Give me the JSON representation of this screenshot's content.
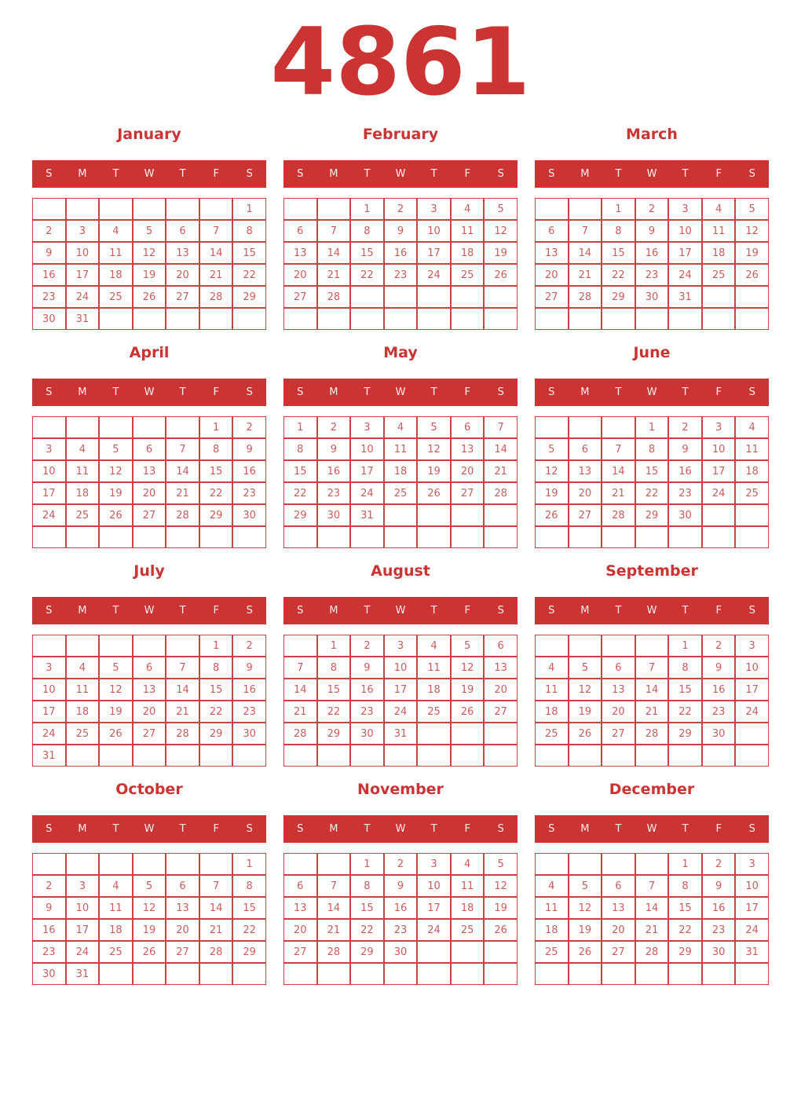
{
  "title": "4861",
  "weekday_headers": [
    "S",
    "M",
    "T",
    "W",
    "T",
    "F",
    "S"
  ],
  "colors": {
    "accent": "#cc3333",
    "day_number": "#cd5c5c",
    "grid_border": "#cb4343",
    "weekday_text": "#f8f0f0",
    "page_background": "#ffffff"
  },
  "months": [
    {
      "name": "January",
      "weeks": [
        [
          "",
          "",
          "",
          "",
          "",
          "",
          "1"
        ],
        [
          "2",
          "3",
          "4",
          "5",
          "6",
          "7",
          "8"
        ],
        [
          "9",
          "10",
          "11",
          "12",
          "13",
          "14",
          "15"
        ],
        [
          "16",
          "17",
          "18",
          "19",
          "20",
          "21",
          "22"
        ],
        [
          "23",
          "24",
          "25",
          "26",
          "27",
          "28",
          "29"
        ],
        [
          "30",
          "31",
          "",
          "",
          "",
          "",
          ""
        ]
      ]
    },
    {
      "name": "February",
      "weeks": [
        [
          "",
          "",
          "1",
          "2",
          "3",
          "4",
          "5"
        ],
        [
          "6",
          "7",
          "8",
          "9",
          "10",
          "11",
          "12"
        ],
        [
          "13",
          "14",
          "15",
          "16",
          "17",
          "18",
          "19"
        ],
        [
          "20",
          "21",
          "22",
          "23",
          "24",
          "25",
          "26"
        ],
        [
          "27",
          "28",
          "",
          "",
          "",
          "",
          ""
        ],
        [
          "",
          "",
          "",
          "",
          "",
          "",
          ""
        ]
      ]
    },
    {
      "name": "March",
      "weeks": [
        [
          "",
          "",
          "1",
          "2",
          "3",
          "4",
          "5"
        ],
        [
          "6",
          "7",
          "8",
          "9",
          "10",
          "11",
          "12"
        ],
        [
          "13",
          "14",
          "15",
          "16",
          "17",
          "18",
          "19"
        ],
        [
          "20",
          "21",
          "22",
          "23",
          "24",
          "25",
          "26"
        ],
        [
          "27",
          "28",
          "29",
          "30",
          "31",
          "",
          ""
        ],
        [
          "",
          "",
          "",
          "",
          "",
          "",
          ""
        ]
      ]
    },
    {
      "name": "April",
      "weeks": [
        [
          "",
          "",
          "",
          "",
          "",
          "1",
          "2"
        ],
        [
          "3",
          "4",
          "5",
          "6",
          "7",
          "8",
          "9"
        ],
        [
          "10",
          "11",
          "12",
          "13",
          "14",
          "15",
          "16"
        ],
        [
          "17",
          "18",
          "19",
          "20",
          "21",
          "22",
          "23"
        ],
        [
          "24",
          "25",
          "26",
          "27",
          "28",
          "29",
          "30"
        ],
        [
          "",
          "",
          "",
          "",
          "",
          "",
          ""
        ]
      ]
    },
    {
      "name": "May",
      "weeks": [
        [
          "1",
          "2",
          "3",
          "4",
          "5",
          "6",
          "7"
        ],
        [
          "8",
          "9",
          "10",
          "11",
          "12",
          "13",
          "14"
        ],
        [
          "15",
          "16",
          "17",
          "18",
          "19",
          "20",
          "21"
        ],
        [
          "22",
          "23",
          "24",
          "25",
          "26",
          "27",
          "28"
        ],
        [
          "29",
          "30",
          "31",
          "",
          "",
          "",
          ""
        ],
        [
          "",
          "",
          "",
          "",
          "",
          "",
          ""
        ]
      ]
    },
    {
      "name": "June",
      "weeks": [
        [
          "",
          "",
          "",
          "1",
          "2",
          "3",
          "4"
        ],
        [
          "5",
          "6",
          "7",
          "8",
          "9",
          "10",
          "11"
        ],
        [
          "12",
          "13",
          "14",
          "15",
          "16",
          "17",
          "18"
        ],
        [
          "19",
          "20",
          "21",
          "22",
          "23",
          "24",
          "25"
        ],
        [
          "26",
          "27",
          "28",
          "29",
          "30",
          "",
          ""
        ],
        [
          "",
          "",
          "",
          "",
          "",
          "",
          ""
        ]
      ]
    },
    {
      "name": "July",
      "weeks": [
        [
          "",
          "",
          "",
          "",
          "",
          "1",
          "2"
        ],
        [
          "3",
          "4",
          "5",
          "6",
          "7",
          "8",
          "9"
        ],
        [
          "10",
          "11",
          "12",
          "13",
          "14",
          "15",
          "16"
        ],
        [
          "17",
          "18",
          "19",
          "20",
          "21",
          "22",
          "23"
        ],
        [
          "24",
          "25",
          "26",
          "27",
          "28",
          "29",
          "30"
        ],
        [
          "31",
          "",
          "",
          "",
          "",
          "",
          ""
        ]
      ]
    },
    {
      "name": "August",
      "weeks": [
        [
          "",
          "1",
          "2",
          "3",
          "4",
          "5",
          "6"
        ],
        [
          "7",
          "8",
          "9",
          "10",
          "11",
          "12",
          "13"
        ],
        [
          "14",
          "15",
          "16",
          "17",
          "18",
          "19",
          "20"
        ],
        [
          "21",
          "22",
          "23",
          "24",
          "25",
          "26",
          "27"
        ],
        [
          "28",
          "29",
          "30",
          "31",
          "",
          "",
          ""
        ],
        [
          "",
          "",
          "",
          "",
          "",
          "",
          ""
        ]
      ]
    },
    {
      "name": "September",
      "weeks": [
        [
          "",
          "",
          "",
          "",
          "1",
          "2",
          "3"
        ],
        [
          "4",
          "5",
          "6",
          "7",
          "8",
          "9",
          "10"
        ],
        [
          "11",
          "12",
          "13",
          "14",
          "15",
          "16",
          "17"
        ],
        [
          "18",
          "19",
          "20",
          "21",
          "22",
          "23",
          "24"
        ],
        [
          "25",
          "26",
          "27",
          "28",
          "29",
          "30",
          ""
        ],
        [
          "",
          "",
          "",
          "",
          "",
          "",
          ""
        ]
      ]
    },
    {
      "name": "October",
      "weeks": [
        [
          "",
          "",
          "",
          "",
          "",
          "",
          "1"
        ],
        [
          "2",
          "3",
          "4",
          "5",
          "6",
          "7",
          "8"
        ],
        [
          "9",
          "10",
          "11",
          "12",
          "13",
          "14",
          "15"
        ],
        [
          "16",
          "17",
          "18",
          "19",
          "20",
          "21",
          "22"
        ],
        [
          "23",
          "24",
          "25",
          "26",
          "27",
          "28",
          "29"
        ],
        [
          "30",
          "31",
          "",
          "",
          "",
          "",
          ""
        ]
      ]
    },
    {
      "name": "November",
      "weeks": [
        [
          "",
          "",
          "1",
          "2",
          "3",
          "4",
          "5"
        ],
        [
          "6",
          "7",
          "8",
          "9",
          "10",
          "11",
          "12"
        ],
        [
          "13",
          "14",
          "15",
          "16",
          "17",
          "18",
          "19"
        ],
        [
          "20",
          "21",
          "22",
          "23",
          "24",
          "25",
          "26"
        ],
        [
          "27",
          "28",
          "29",
          "30",
          "",
          "",
          ""
        ],
        [
          "",
          "",
          "",
          "",
          "",
          "",
          ""
        ]
      ]
    },
    {
      "name": "December",
      "weeks": [
        [
          "",
          "",
          "",
          "",
          "1",
          "2",
          "3"
        ],
        [
          "4",
          "5",
          "6",
          "7",
          "8",
          "9",
          "10"
        ],
        [
          "11",
          "12",
          "13",
          "14",
          "15",
          "16",
          "17"
        ],
        [
          "18",
          "19",
          "20",
          "21",
          "22",
          "23",
          "24"
        ],
        [
          "25",
          "26",
          "27",
          "28",
          "29",
          "30",
          "31"
        ],
        [
          "",
          "",
          "",
          "",
          "",
          "",
          ""
        ]
      ]
    }
  ]
}
